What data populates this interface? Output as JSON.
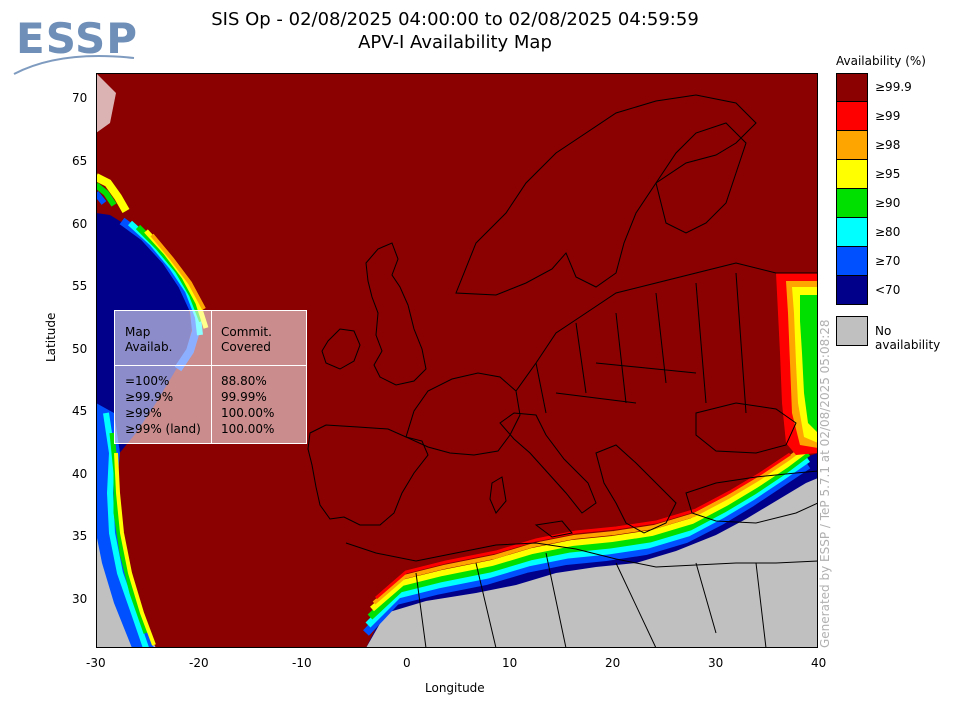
{
  "header": {
    "logo_text": "ESSP",
    "title_line1": "SIS Op - 02/08/2025 04:00:00 to 02/08/2025 04:59:59",
    "title_line2": "APV-I Availability Map"
  },
  "axes": {
    "xlabel": "Longitude",
    "ylabel": "Latitude",
    "x_ticks": [
      "-30",
      "-20",
      "-10",
      "0",
      "10",
      "20",
      "30",
      "40"
    ],
    "y_ticks": [
      "70",
      "65",
      "60",
      "55",
      "50",
      "45",
      "40",
      "35",
      "30"
    ],
    "xlim": [
      -30,
      40
    ],
    "ylim": [
      26,
      72
    ]
  },
  "legend": {
    "title": "Availability (%)",
    "items": [
      {
        "label": "≥99.9",
        "color": "#8b0000"
      },
      {
        "label": "≥99",
        "color": "#ff0000"
      },
      {
        "label": "≥98",
        "color": "#ffa500"
      },
      {
        "label": "≥95",
        "color": "#ffff00"
      },
      {
        "label": "≥90",
        "color": "#00e000"
      },
      {
        "label": "≥80",
        "color": "#00ffff"
      },
      {
        "label": "≥70",
        "color": "#0050ff"
      },
      {
        "label": "<70",
        "color": "#00008b"
      }
    ],
    "no_availability_label": "No availability",
    "no_availability_color": "#c0c0c0"
  },
  "stats": {
    "col1_header": "Map\nAvailab.",
    "col2_header": "Commit.\nCovered",
    "rows": [
      {
        "avail": "=100%",
        "covered": "88.80%"
      },
      {
        "avail": "≥99.9%",
        "covered": "99.99%"
      },
      {
        "avail": "≥99%",
        "covered": "100.00%"
      },
      {
        "avail": "≥99% (land)",
        "covered": "100.00%"
      }
    ]
  },
  "watermark": "Generated by ESSP / TeP 5.7.1 at 02/08/2025 05:08:28",
  "colors": {
    "main": "#8b0000",
    "no_avail": "#c0c0c0"
  }
}
